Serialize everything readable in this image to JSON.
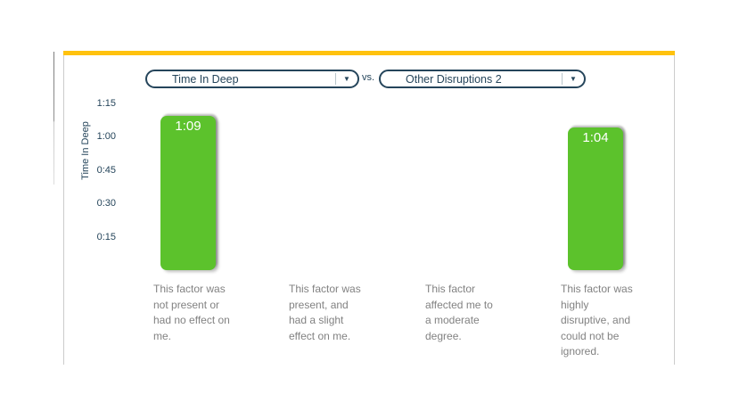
{
  "header": {
    "metric_dropdown": {
      "value": "Time In Deep"
    },
    "vs_label": "vs.",
    "factor_dropdown": {
      "value": "Other Disruptions 2"
    }
  },
  "icons": {
    "dropdown_arrow": "▼"
  },
  "colors": {
    "accent_yellow": "#FFC20E",
    "bar_green": "#5CC22C",
    "navy_text": "#25455B",
    "category_text": "#828282",
    "panel_border": "#CCCCCC"
  },
  "chart_data": {
    "type": "bar",
    "title": "",
    "y_axis_label": "Time In Deep",
    "y_tick_labels": [
      "1:15",
      "1:00",
      "0:45",
      "0:30",
      "0:15"
    ],
    "y_tick_minutes": [
      75,
      60,
      45,
      30,
      15
    ],
    "ylim_minutes": [
      0,
      77
    ],
    "grid": "off",
    "legend": "none",
    "categories": [
      "This factor was\nnot present or\nhad no effect on\nme.",
      "This factor was\npresent, and\nhad a slight\neffect on me.",
      "This factor\naffected me to\na moderate\ndegree.",
      "This factor was\nhighly\ndisruptive, and\ncould not be\nignored."
    ],
    "series": [
      {
        "name": "Time In Deep",
        "points": [
          {
            "category_index": 0,
            "value_label": "1:09",
            "minutes": 69
          },
          {
            "category_index": 3,
            "value_label": "1:04",
            "minutes": 64
          }
        ]
      }
    ]
  }
}
